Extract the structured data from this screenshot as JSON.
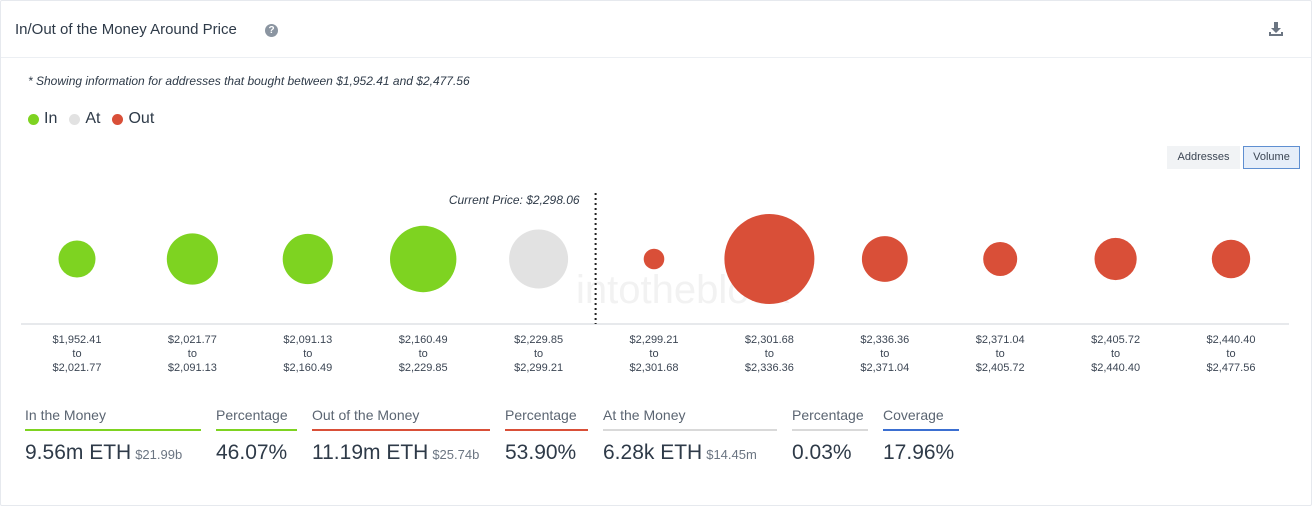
{
  "header": {
    "title": "In/Out of the Money Around Price",
    "help_glyph": "?",
    "help_icon": "question-circle-icon",
    "download_icon": "download-icon"
  },
  "note": "* Showing information for addresses that bought between $1,952.41 and $2,477.56",
  "legend": [
    {
      "label": "In",
      "color": "#7ed321"
    },
    {
      "label": "At",
      "color": "#e2e2e2"
    },
    {
      "label": "Out",
      "color": "#d94f38"
    }
  ],
  "toggles": {
    "addresses": "Addresses",
    "volume": "Volume",
    "selected": "Volume"
  },
  "chart_data": {
    "type": "bubble",
    "current_price_label": "Current Price: $2,298.06",
    "current_price": 2298.06,
    "colors": {
      "In": "#7ed321",
      "At": "#e2e2e2",
      "Out": "#d94f38"
    },
    "buckets": [
      {
        "from": "$1,952.41",
        "to": "$2,021.77",
        "status": "In",
        "volume": 1.3
      },
      {
        "from": "$2,021.77",
        "to": "$2,091.13",
        "status": "In",
        "volume": 2.5
      },
      {
        "from": "$2,091.13",
        "to": "$2,160.49",
        "status": "In",
        "volume": 2.4
      },
      {
        "from": "$2,160.49",
        "to": "$2,229.85",
        "status": "In",
        "volume": 4.2
      },
      {
        "from": "$2,229.85",
        "to": "$2,299.21",
        "status": "At",
        "volume": 3.3
      },
      {
        "from": "$2,299.21",
        "to": "$2,301.68",
        "status": "Out",
        "volume": 0.4
      },
      {
        "from": "$2,301.68",
        "to": "$2,336.36",
        "status": "Out",
        "volume": 7.7
      },
      {
        "from": "$2,336.36",
        "to": "$2,371.04",
        "status": "Out",
        "volume": 2.0
      },
      {
        "from": "$2,371.04",
        "to": "$2,405.72",
        "status": "Out",
        "volume": 1.1
      },
      {
        "from": "$2,405.72",
        "to": "$2,440.40",
        "status": "Out",
        "volume": 1.7
      },
      {
        "from": "$2,440.40",
        "to": "$2,477.56",
        "status": "Out",
        "volume": 1.4
      }
    ],
    "separator": "to"
  },
  "stats": [
    {
      "label": "In the Money",
      "value": "9.56m ETH",
      "sub": "$21.99b",
      "color": "#7ed321"
    },
    {
      "label": "Percentage",
      "value": "46.07%",
      "sub": "",
      "color": "#7ed321"
    },
    {
      "label": "Out of the Money",
      "value": "11.19m ETH",
      "sub": "$25.74b",
      "color": "#d94f38"
    },
    {
      "label": "Percentage",
      "value": "53.90%",
      "sub": "",
      "color": "#d94f38"
    },
    {
      "label": "At the Money",
      "value": "6.28k ETH",
      "sub": "$14.45m",
      "color": "#d9d9d9"
    },
    {
      "label": "Percentage",
      "value": "0.03%",
      "sub": "",
      "color": "#d9d9d9"
    },
    {
      "label": "Coverage",
      "value": "17.96%",
      "sub": "",
      "color": "#3b6fd1"
    }
  ]
}
